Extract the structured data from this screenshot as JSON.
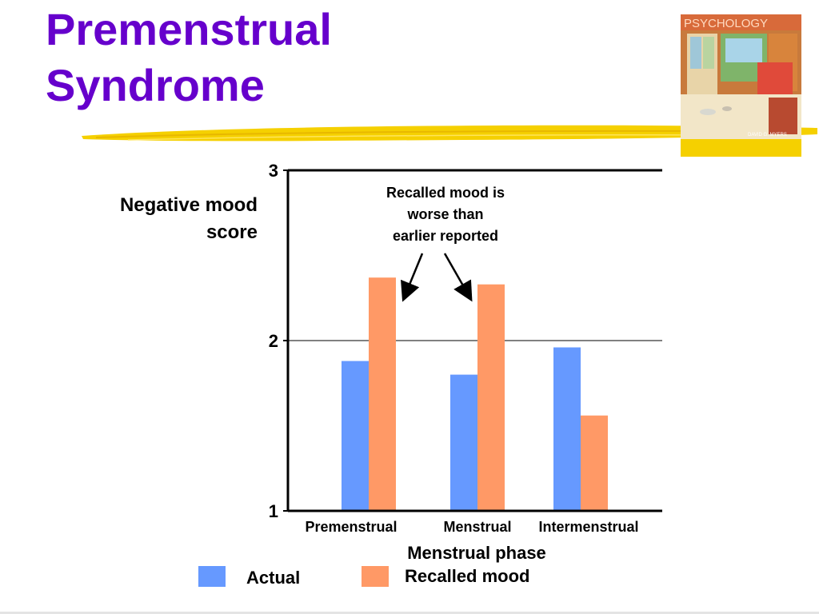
{
  "slide": {
    "title_line1": "Premenstrual",
    "title_line2": "Syndrome"
  },
  "book_cover": {
    "title": "PSYCHOLOGY",
    "author": "DAVID G. MYERS"
  },
  "colors": {
    "title": "#6600cc",
    "actual": "#6699ff",
    "recalled": "#ff9966",
    "accent_stroke": "#f5d000"
  },
  "chart_data": {
    "type": "bar",
    "categories": [
      "Premenstrual",
      "Menstrual",
      "Intermenstrual"
    ],
    "series": [
      {
        "name": "Actual",
        "values": [
          1.88,
          1.8,
          1.96
        ]
      },
      {
        "name": "Recalled mood",
        "values": [
          2.37,
          2.33,
          1.56
        ]
      }
    ],
    "ylim": [
      1,
      3
    ],
    "yticks": [
      1,
      2,
      3
    ],
    "ylabel_line1": "Negative mood",
    "ylabel_line2": "score",
    "xlabel": "Menstrual phase",
    "gridlines": [
      2
    ],
    "legend_position": "bottom",
    "annotation": {
      "lines": [
        "Recalled mood is",
        "worse than",
        "earlier reported"
      ]
    }
  }
}
